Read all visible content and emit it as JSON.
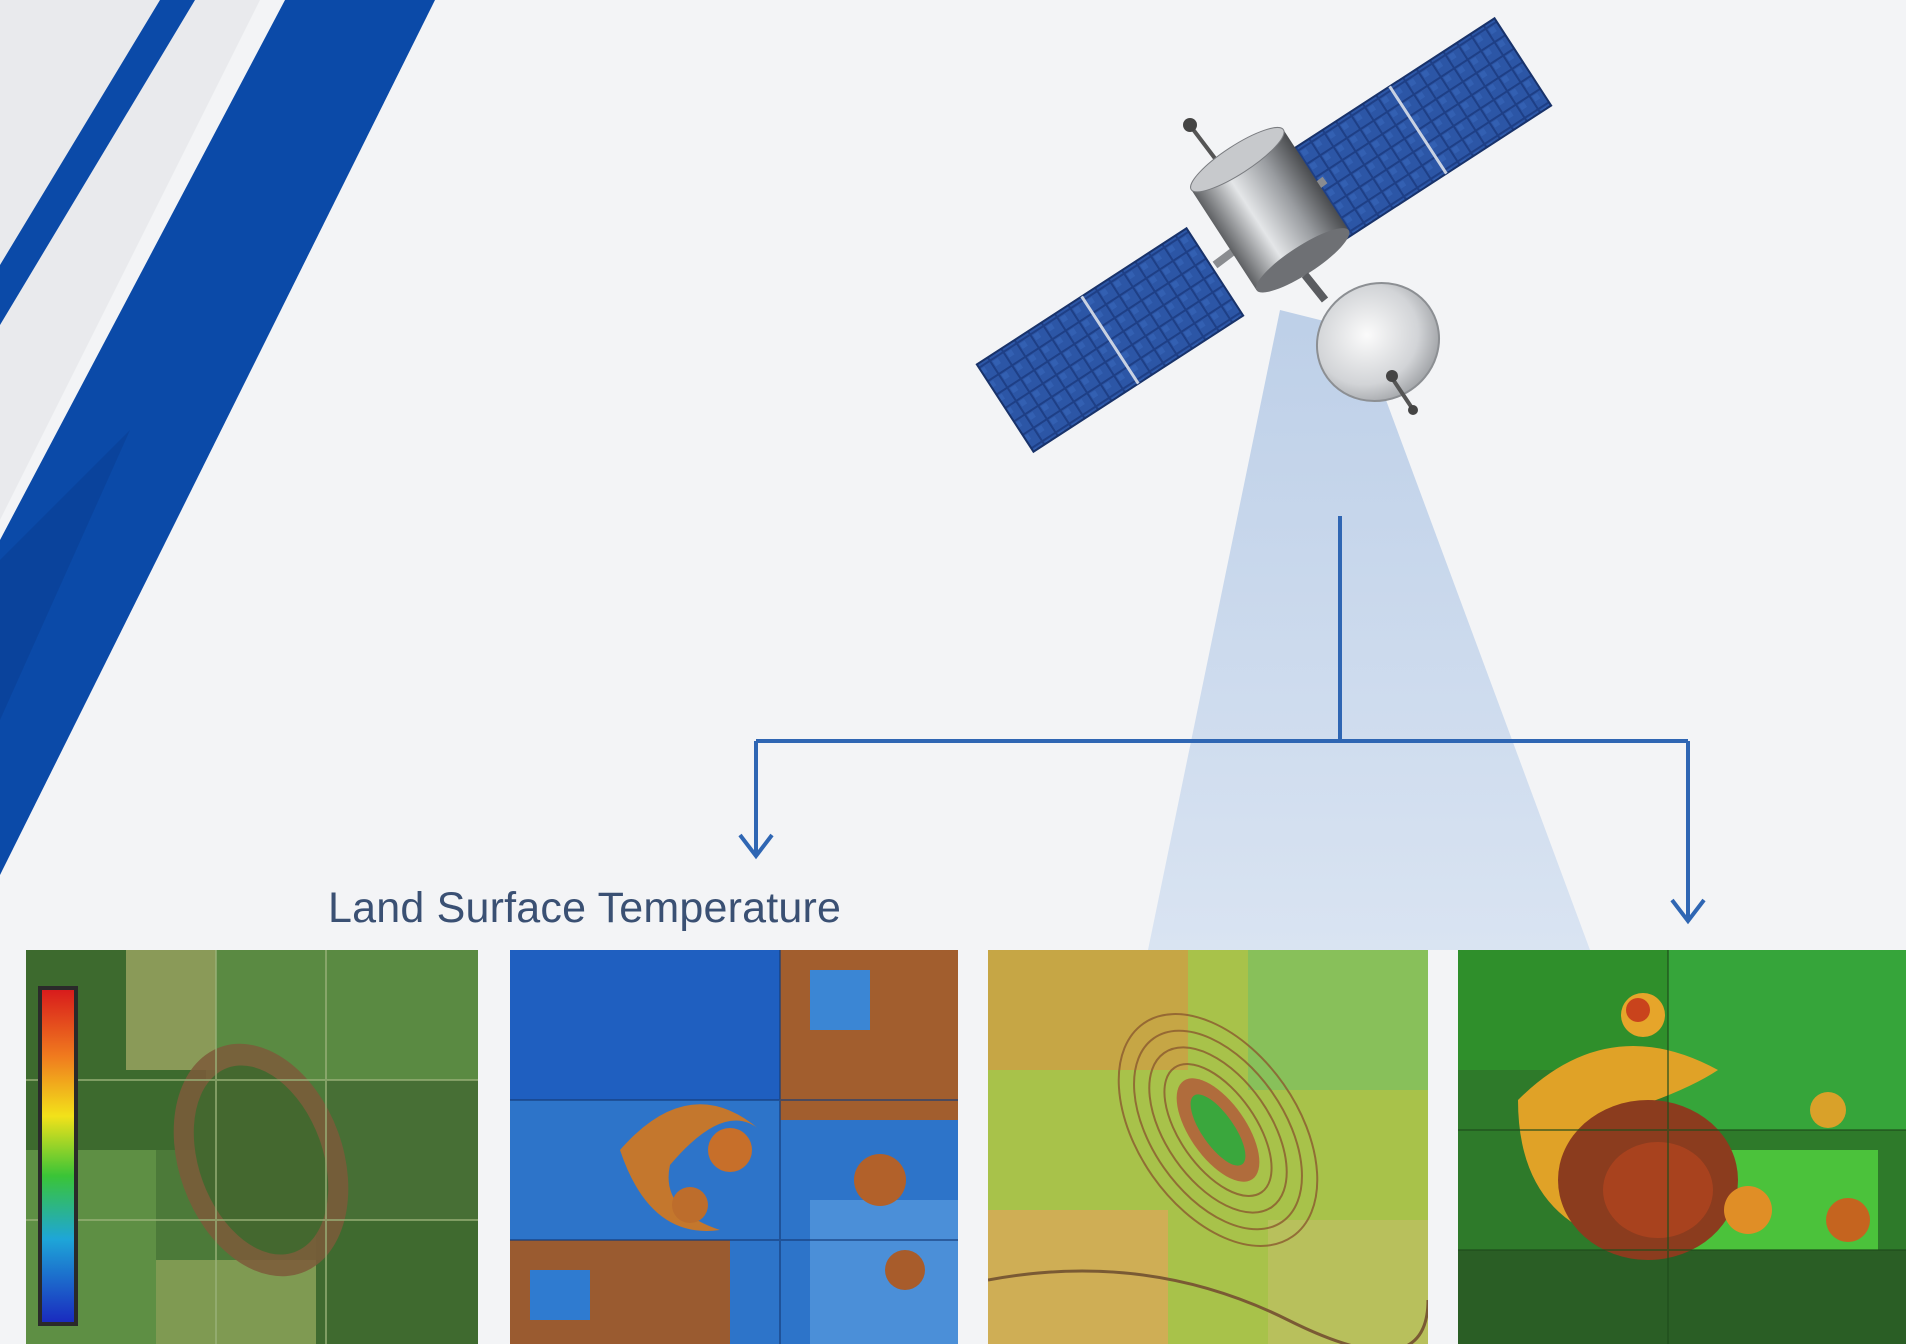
{
  "panel_label": "Land Surface Temperature",
  "colors": {
    "stripe_blue": "#0b4aa8",
    "connector_blue": "#2f66b3",
    "beam_blue": "#c7d8ee",
    "label_text": "#3a5073"
  },
  "icons": {
    "satellite": "satellite-icon",
    "arrow_left": "arrow-down-icon",
    "arrow_right": "arrow-down-icon"
  }
}
